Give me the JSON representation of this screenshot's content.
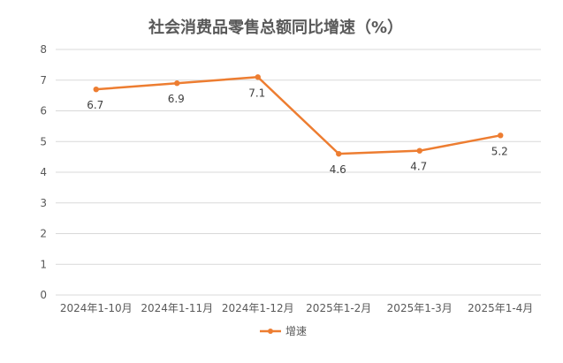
{
  "chart_data": {
    "type": "line",
    "title": "社会消费品零售总额同比增速（%）",
    "xlabel": "",
    "ylabel": "",
    "categories": [
      "2024年1-10月",
      "2024年1-11月",
      "2024年1-12月",
      "2025年1-2月",
      "2025年1-3月",
      "2025年1-4月"
    ],
    "series": [
      {
        "name": "增速",
        "values": [
          6.7,
          6.9,
          7.1,
          4.6,
          4.7,
          5.2
        ],
        "color": "#ed7d31"
      }
    ],
    "ylim": [
      0,
      8
    ],
    "yticks": [
      "0",
      "1",
      "2",
      "3",
      "4",
      "5",
      "6",
      "7",
      "8"
    ],
    "data_labels": [
      "6.7",
      "6.9",
      "7.1",
      "4.6",
      "4.7",
      "5.2"
    ],
    "grid": true,
    "legend_position": "bottom"
  }
}
